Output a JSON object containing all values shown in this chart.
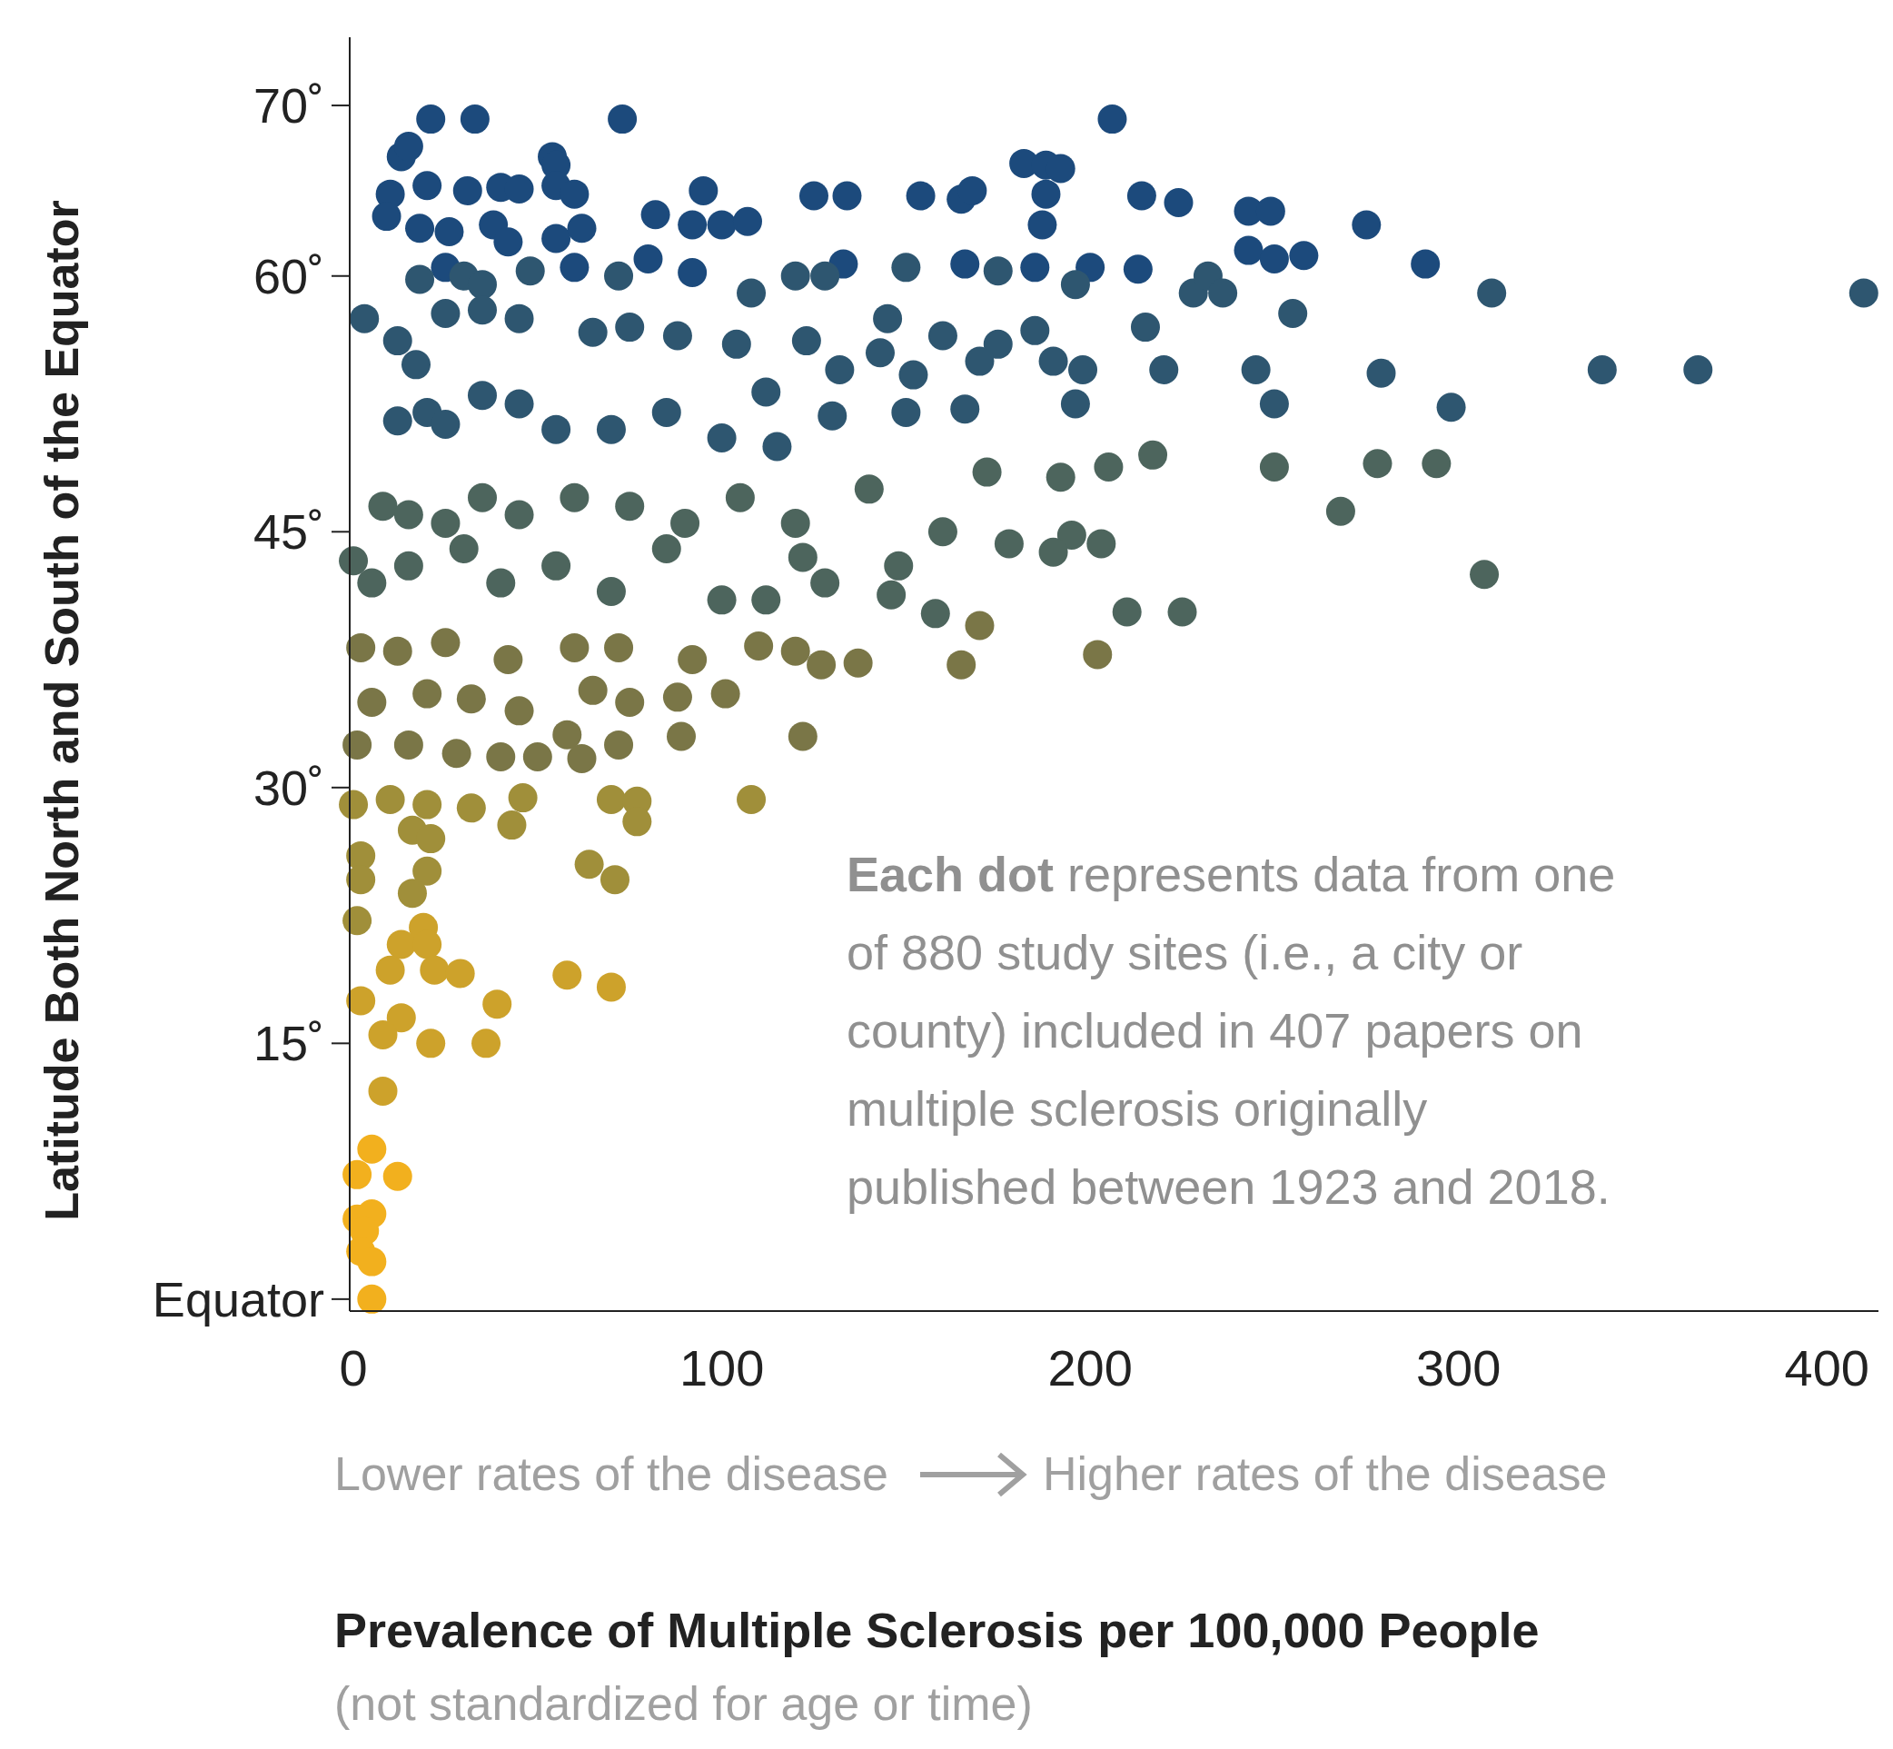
{
  "chart_data": {
    "type": "scatter",
    "ylabel": "Latitude Both North and South of the Equator",
    "xlabel": "Prevalence of Multiple Sclerosis per 100,000 People",
    "xlim": [
      -1,
      414
    ],
    "xticks": [
      0,
      100,
      200,
      300,
      400
    ],
    "ylim": [
      -0.7,
      74
    ],
    "yticks": [
      {
        "value": 0,
        "label": "Equator"
      },
      {
        "value": 15,
        "label": "15˚"
      },
      {
        "value": 30,
        "label": "30˚"
      },
      {
        "value": 45,
        "label": "45˚"
      },
      {
        "value": 60,
        "label": "60˚"
      },
      {
        "value": 70,
        "label": "70˚"
      }
    ],
    "grid": false,
    "marker": "circle",
    "annotations": [
      "Each dot",
      "represents data from one of 880 study sites (i.e., a city or county) included in 407 papers on multiple sclerosis originally published between 1923 and 2018.",
      "Lower rates of the disease",
      "Higher rates of the disease",
      "(not standardized for age or time)"
    ],
    "series": [
      {
        "color": "#1c4a7c",
        "x": [
          21,
          33,
          73,
          206,
          13,
          15,
          54,
          55,
          10,
          20,
          31,
          40,
          45,
          55,
          60,
          95,
          125,
          134,
          154,
          165,
          168,
          182,
          188,
          192,
          188,
          214,
          224,
          9,
          18,
          26,
          38,
          42,
          55,
          62,
          82,
          92,
          100,
          107,
          243,
          249,
          243,
          250,
          258,
          275,
          187,
          291,
          25,
          60,
          80,
          92,
          133,
          166,
          200,
          213,
          185
        ],
        "values": [
          69.2,
          69.2,
          69.2,
          69.2,
          67,
          67.6,
          67,
          66.5,
          64.8,
          65.3,
          65,
          65.2,
          65.1,
          65.3,
          64.8,
          65,
          64.7,
          64.7,
          64.7,
          64.5,
          65,
          66.6,
          66.5,
          66.3,
          64.8,
          64.7,
          64.3,
          63.5,
          62.8,
          62.6,
          63,
          62,
          62.2,
          62.8,
          63.6,
          63,
          63,
          63.2,
          63.8,
          63.8,
          61.5,
          61,
          61.2,
          63,
          63,
          60.7,
          60.5,
          60.5,
          61,
          60.2,
          60.7,
          60.7,
          60.5,
          60.4,
          60.5
        ]
      },
      {
        "color": "#2e5670",
        "x": [
          309,
          410,
          18,
          30,
          35,
          48,
          72,
          108,
          120,
          128,
          150,
          175,
          196,
          228,
          232,
          236,
          3,
          12,
          17,
          25,
          35,
          45,
          65,
          75,
          88,
          104,
          123,
          145,
          160,
          175,
          185,
          190,
          215,
          255,
          339,
          365,
          279,
          245,
          220,
          198,
          152,
          143,
          112,
          132,
          170,
          12,
          20,
          25,
          35,
          45,
          55,
          70,
          85,
          100,
          115,
          130,
          150,
          166,
          196,
          250,
          298
        ],
        "values": [
          59,
          59,
          59.8,
          60,
          59.5,
          60.3,
          60,
          59,
          60,
          60,
          60.5,
          60.3,
          59.5,
          59,
          60,
          59,
          57.5,
          56.2,
          54.8,
          57.8,
          58,
          57.5,
          56.7,
          57,
          56.5,
          56,
          56.2,
          57.5,
          56.5,
          56,
          56.8,
          55,
          57,
          57.8,
          54.5,
          54.5,
          54.3,
          54.5,
          54.5,
          54.5,
          54.2,
          55.5,
          53.2,
          54.5,
          55,
          51.5,
          52,
          51.3,
          53,
          52.5,
          51,
          51,
          52,
          50.5,
          50,
          51.8,
          52,
          52.2,
          52.5,
          52.5,
          52.3
        ]
      },
      {
        "color": "#4d655d",
        "x": [
          205,
          172,
          217,
          192,
          250,
          278,
          294,
          268,
          307,
          8,
          15,
          25,
          35,
          45,
          60,
          75,
          90,
          105,
          120,
          140,
          160,
          178,
          195,
          203,
          190,
          148,
          122,
          0,
          5,
          15,
          30,
          40,
          55,
          70,
          85,
          100,
          112,
          128,
          146,
          158,
          210,
          225
        ],
        "values": [
          48.8,
          48.5,
          49.5,
          48.2,
          48.8,
          49,
          49,
          46.2,
          42.5,
          46.5,
          46,
          45.5,
          47,
          46,
          47,
          46.5,
          45.5,
          47,
          45.5,
          47.5,
          45,
          44.3,
          44.8,
          44.3,
          43.8,
          43,
          43.5,
          43.3,
          42,
          43,
          44,
          42,
          43,
          41.5,
          44,
          41,
          41,
          42,
          41.3,
          40.2,
          40.3,
          40.3
        ]
      },
      {
        "color": "#7a7647",
        "x": [
          2,
          12,
          25,
          42,
          60,
          72,
          92,
          110,
          120,
          127,
          137,
          165,
          170,
          202,
          5,
          20,
          32,
          45,
          65,
          75,
          88,
          101,
          1,
          15,
          28,
          40,
          50,
          58,
          62,
          72,
          89,
          122
        ],
        "values": [
          38.2,
          38,
          38.5,
          37.5,
          38.2,
          38.2,
          37.5,
          38.3,
          38,
          37.2,
          37.3,
          37.2,
          39.5,
          37.8,
          35,
          35.5,
          35.2,
          34.5,
          35.7,
          35,
          35.3,
          35.5,
          32.5,
          32.5,
          32,
          31.8,
          31.8,
          33.1,
          31.7,
          32.5,
          33,
          33
        ]
      },
      {
        "color": "#a08f3a",
        "x": [
          0,
          10,
          20,
          32,
          46,
          43,
          70,
          77,
          77,
          108,
          16,
          21,
          2,
          20,
          64,
          71,
          2,
          1,
          16
        ],
        "values": [
          29,
          29.3,
          29,
          28.8,
          29.4,
          27.8,
          29.3,
          29.2,
          28,
          29.3,
          27.5,
          27,
          26,
          25.1,
          25.5,
          24.6,
          24.6,
          22.2,
          23.8
        ]
      },
      {
        "color": "#cda22b",
        "x": [
          19,
          13,
          20,
          10,
          22,
          29,
          58,
          70,
          2,
          13,
          39,
          8,
          21,
          36,
          8
        ],
        "values": [
          21.8,
          20.8,
          20.8,
          19.3,
          19.3,
          19.1,
          19,
          18.3,
          17.5,
          16.5,
          17.3,
          15.5,
          15,
          15,
          12.2
        ]
      },
      {
        "color": "#f2b01e",
        "x": [
          5,
          1,
          12,
          1,
          5,
          3,
          2,
          5,
          5
        ],
        "values": [
          8.8,
          7.3,
          7.2,
          4.7,
          5,
          4,
          2.8,
          2.2,
          0
        ]
      }
    ]
  }
}
